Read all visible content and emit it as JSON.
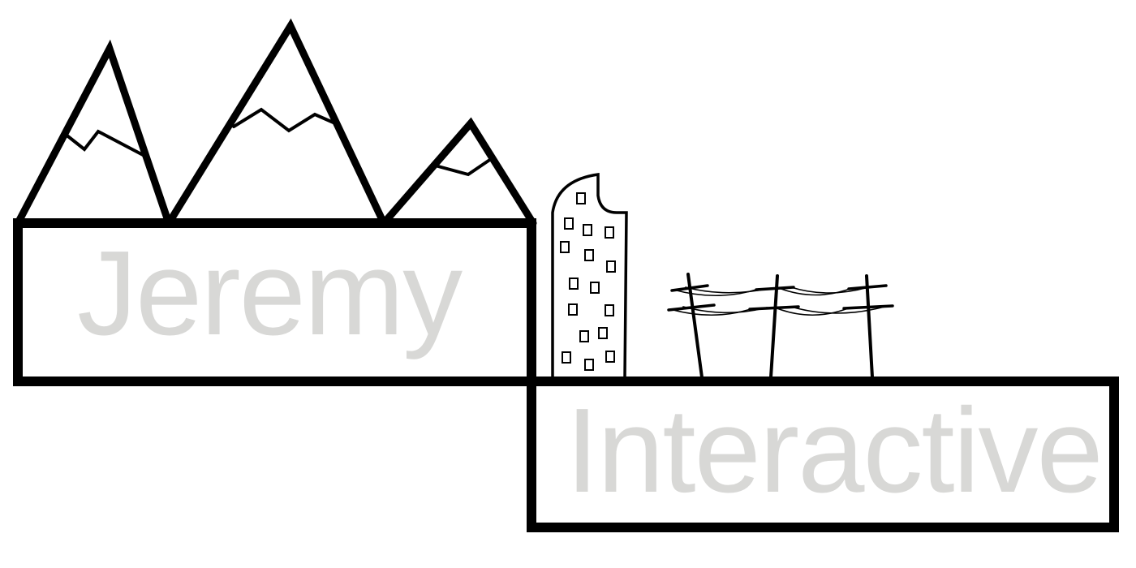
{
  "logo": {
    "word_top": "Jeremy",
    "word_bottom": "Interactive"
  },
  "colors": {
    "stroke": "#000000",
    "text": "#d8d8d6",
    "background": "#ffffff"
  },
  "icons": {
    "mountains": "mountain-range-icon",
    "tower": "skyscraper-icon",
    "power_lines": "power-lines-icon"
  }
}
